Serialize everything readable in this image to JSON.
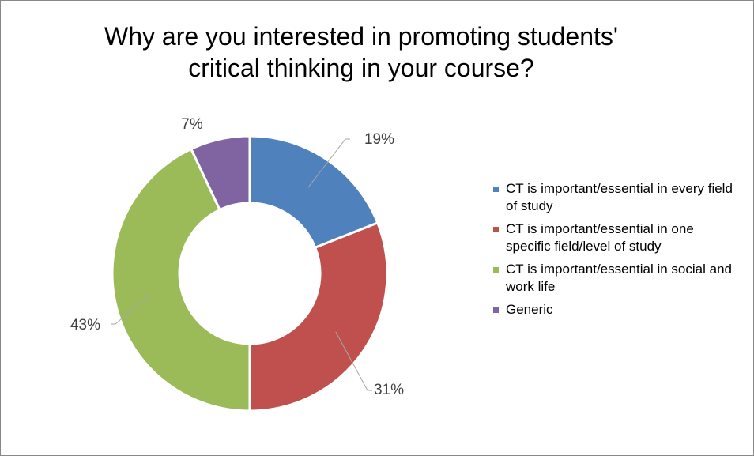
{
  "chart_data": {
    "type": "donut",
    "title": "Why are you interested in promoting students' critical thinking in your course?",
    "categories": [
      "CT is important/essential in every field of study",
      "CT is important/essential in one specific field/level of study",
      "CT is important/essential in social and work life",
      "Generic"
    ],
    "values": [
      19,
      31,
      43,
      7
    ],
    "value_labels": [
      "19%",
      "31%",
      "43%",
      "7%"
    ],
    "colors": [
      "#4f81bd",
      "#c0504d",
      "#9bbb59",
      "#8064a2"
    ],
    "legend": "right"
  }
}
